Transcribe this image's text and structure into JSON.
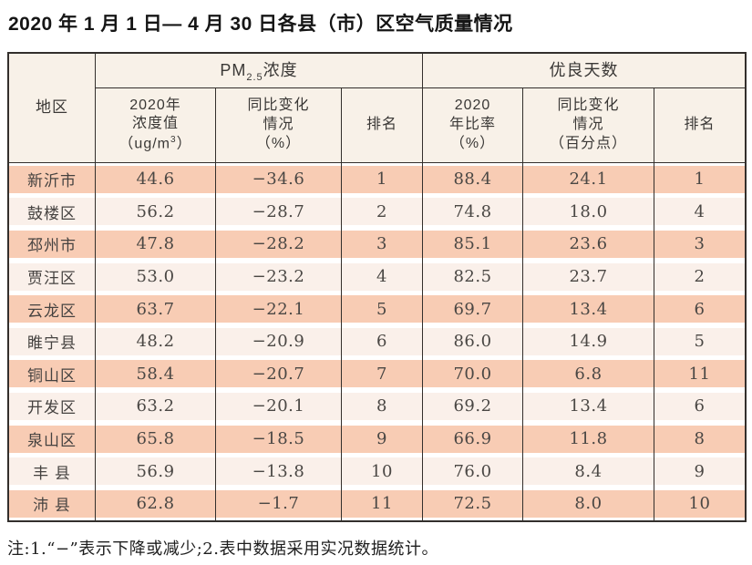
{
  "title": "2020 年 1 月 1 日— 4 月 30 日各县（市）区空气质量情况",
  "note": "注:1.“−”表示下降或减少;2.表中数据采用实况数据统计。",
  "display": {
    "region": "地区",
    "pm_group": {
      "prefix": "PM",
      "sub": "2.5",
      "suffix": " 浓度"
    },
    "good_group": "优良天数",
    "pm_value": {
      "l1": "2020年",
      "l2": "浓度值",
      "l3_pre": "（ug/m",
      "l3_sup": "3",
      "l3_post": "）"
    },
    "pm_change": {
      "l1": "同比变化",
      "l2": "情况",
      "l3": "（%）"
    },
    "pm_rank": "排名",
    "good_rate": {
      "l1": "2020",
      "l2": "年比率",
      "l3": "（%）"
    },
    "good_change": {
      "l1": "同比变化",
      "l2": "情况",
      "l3": "（百分点）"
    },
    "good_rank": "排名"
  },
  "chart_data": {
    "type": "table",
    "title": "2020 年 1 月 1 日— 4 月 30 日各县（市）区空气质量情况",
    "column_groups": [
      "PM2.5 浓度",
      "优良天数"
    ],
    "columns": [
      "地区",
      "2020年浓度值（ug/m3）",
      "同比变化情况（%）",
      "排名",
      "2020年比率（%）",
      "同比变化情况（百分点）",
      "排名"
    ],
    "rows": [
      [
        "新沂市",
        "44.6",
        "−34.6",
        "1",
        "88.4",
        "24.1",
        "1"
      ],
      [
        "鼓楼区",
        "56.2",
        "−28.7",
        "2",
        "74.8",
        "18.0",
        "4"
      ],
      [
        "邳州市",
        "47.8",
        "−28.2",
        "3",
        "85.1",
        "23.6",
        "3"
      ],
      [
        "贾汪区",
        "53.0",
        "−23.2",
        "4",
        "82.5",
        "23.7",
        "2"
      ],
      [
        "云龙区",
        "63.7",
        "−22.1",
        "5",
        "69.7",
        "13.4",
        "6"
      ],
      [
        "睢宁县",
        "48.2",
        "−20.9",
        "6",
        "86.0",
        "14.9",
        "5"
      ],
      [
        "铜山区",
        "58.4",
        "−20.7",
        "7",
        "70.0",
        "6.8",
        "11"
      ],
      [
        "开发区",
        "63.2",
        "−20.1",
        "8",
        "69.2",
        "13.4",
        "6"
      ],
      [
        "泉山区",
        "65.8",
        "−18.5",
        "9",
        "66.9",
        "11.8",
        "8"
      ],
      [
        "丰 县",
        "56.9",
        "−13.8",
        "10",
        "76.0",
        "8.4",
        "9"
      ],
      [
        "沛 县",
        "62.8",
        "−1.7",
        "11",
        "72.5",
        "8.0",
        "10"
      ]
    ],
    "note": "注:1.“−”表示下降或减少;2.表中数据采用实况数据统计。"
  },
  "colors": {
    "border_line": "#332f2c",
    "row_salmon": "#f8ccb4",
    "row_light": "#faf0ea",
    "header_background": "#f8f1e8",
    "text": "#3d3b39"
  }
}
